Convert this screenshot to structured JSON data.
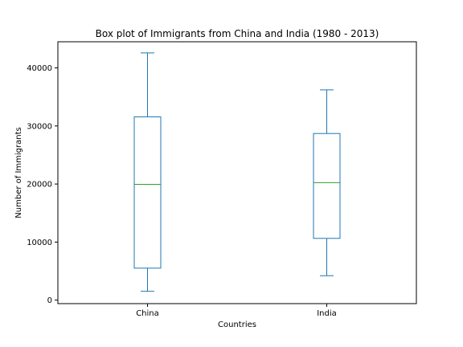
{
  "chart_data": {
    "type": "box",
    "title": "Box plot of Immigrants from China and India (1980 - 2013)",
    "xlabel": "Countries",
    "ylabel": "Number of Immigrants",
    "ylim": [
      -600,
      44500
    ],
    "yticks": [
      0,
      10000,
      20000,
      30000,
      40000
    ],
    "ytick_labels": [
      "0",
      "10000",
      "20000",
      "30000",
      "40000"
    ],
    "categories": [
      "China",
      "India"
    ],
    "boxes": [
      {
        "category": "China",
        "whislo": 1527,
        "q1": 5512,
        "med": 19945,
        "q3": 31568,
        "whishi": 42584
      },
      {
        "category": "India",
        "whislo": 4211,
        "q1": 10637,
        "med": 20235,
        "q3": 28699,
        "whishi": 36210
      }
    ],
    "box_color": "#1f77b4",
    "median_color": "#2ca02c",
    "grid": false
  }
}
